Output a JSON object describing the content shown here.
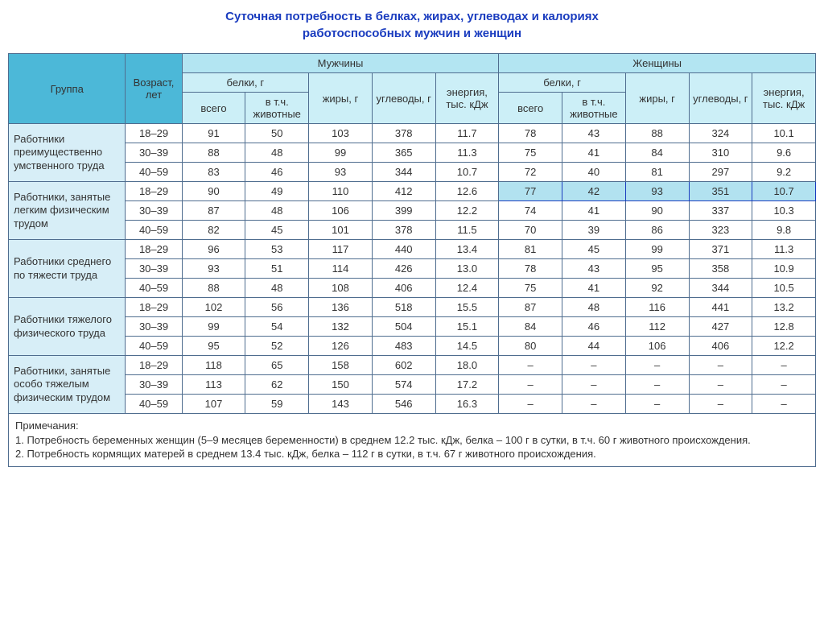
{
  "title_line1": "Суточная потребность в белках, жирах, углеводах и калориях",
  "title_line2": "работоспособных мужчин и женщин",
  "headers": {
    "group": "Группа",
    "age": "Возраст, лет",
    "men": "Мужчины",
    "women": "Женщины",
    "proteins": "белки, г",
    "fats": "жиры, г",
    "carbs": "углеводы, г",
    "energy": "энергия, тыс. кДж",
    "total": "всего",
    "animal": "в т.ч. животные"
  },
  "groups": [
    {
      "label": "Работники преимущественно умственного труда",
      "rows": [
        {
          "age": "18–29",
          "m": [
            "91",
            "50",
            "103",
            "378",
            "11.7"
          ],
          "w": [
            "78",
            "43",
            "88",
            "324",
            "10.1"
          ]
        },
        {
          "age": "30–39",
          "m": [
            "88",
            "48",
            "99",
            "365",
            "11.3"
          ],
          "w": [
            "75",
            "41",
            "84",
            "310",
            "9.6"
          ]
        },
        {
          "age": "40–59",
          "m": [
            "83",
            "46",
            "93",
            "344",
            "10.7"
          ],
          "w": [
            "72",
            "40",
            "81",
            "297",
            "9.2"
          ]
        }
      ]
    },
    {
      "label": "Работники, занятые легким физическим трудом",
      "rows": [
        {
          "age": "18–29",
          "m": [
            "90",
            "49",
            "110",
            "412",
            "12.6"
          ],
          "w": [
            "77",
            "42",
            "93",
            "351",
            "10.7"
          ],
          "hl": true
        },
        {
          "age": "30–39",
          "m": [
            "87",
            "48",
            "106",
            "399",
            "12.2"
          ],
          "w": [
            "74",
            "41",
            "90",
            "337",
            "10.3"
          ]
        },
        {
          "age": "40–59",
          "m": [
            "82",
            "45",
            "101",
            "378",
            "11.5"
          ],
          "w": [
            "70",
            "39",
            "86",
            "323",
            "9.8"
          ]
        }
      ]
    },
    {
      "label": "Работники среднего по тяжести труда",
      "rows": [
        {
          "age": "18–29",
          "m": [
            "96",
            "53",
            "117",
            "440",
            "13.4"
          ],
          "w": [
            "81",
            "45",
            "99",
            "371",
            "11.3"
          ]
        },
        {
          "age": "30–39",
          "m": [
            "93",
            "51",
            "114",
            "426",
            "13.0"
          ],
          "w": [
            "78",
            "43",
            "95",
            "358",
            "10.9"
          ]
        },
        {
          "age": "40–59",
          "m": [
            "88",
            "48",
            "108",
            "406",
            "12.4"
          ],
          "w": [
            "75",
            "41",
            "92",
            "344",
            "10.5"
          ]
        }
      ]
    },
    {
      "label": "Работники тяжелого физического труда",
      "rows": [
        {
          "age": "18–29",
          "m": [
            "102",
            "56",
            "136",
            "518",
            "15.5"
          ],
          "w": [
            "87",
            "48",
            "116",
            "441",
            "13.2"
          ]
        },
        {
          "age": "30–39",
          "m": [
            "99",
            "54",
            "132",
            "504",
            "15.1"
          ],
          "w": [
            "84",
            "46",
            "112",
            "427",
            "12.8"
          ]
        },
        {
          "age": "40–59",
          "m": [
            "95",
            "52",
            "126",
            "483",
            "14.5"
          ],
          "w": [
            "80",
            "44",
            "106",
            "406",
            "12.2"
          ]
        }
      ]
    },
    {
      "label": "Работники, занятые особо тяжелым физическим трудом",
      "rows": [
        {
          "age": "18–29",
          "m": [
            "118",
            "65",
            "158",
            "602",
            "18.0"
          ],
          "w": [
            "–",
            "–",
            "–",
            "–",
            "–"
          ]
        },
        {
          "age": "30–39",
          "m": [
            "113",
            "62",
            "150",
            "574",
            "17.2"
          ],
          "w": [
            "–",
            "–",
            "–",
            "–",
            "–"
          ]
        },
        {
          "age": "40–59",
          "m": [
            "107",
            "59",
            "143",
            "546",
            "16.3"
          ],
          "w": [
            "–",
            "–",
            "–",
            "–",
            "–"
          ]
        }
      ]
    }
  ],
  "notes": {
    "title": "Примечания:",
    "n1": "1. Потребность беременных женщин (5–9 месяцев беременности) в среднем 12.2 тыс. кДж, белка – 100 г в сутки, в т.ч. 60 г животного происхождения.",
    "n2": "2. Потребность кормящих матерей в среднем 13.4 тыс. кДж, белка – 112 г в сутки, в т.ч. 67 г животного происхождения."
  },
  "style": {
    "header_bg_main": "#4cb8d8",
    "header_bg_sub": "#b3e5f2",
    "header_bg_sub2": "#cceff7",
    "groupcell_bg": "#d7eef7",
    "highlight_bg": "#b2e2f0",
    "border_color": "#4f6d8f",
    "title_color": "#1a3cbf"
  }
}
